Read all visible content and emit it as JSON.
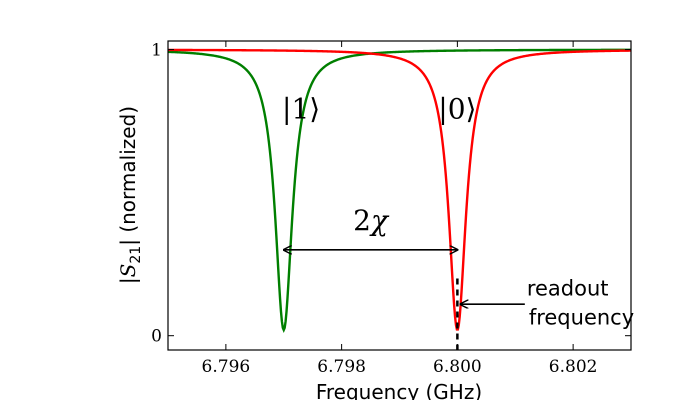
{
  "chart_data": {
    "type": "line",
    "title": "",
    "xlabel": "Frequency (GHz)",
    "ylabel": {
      "pre": "|",
      "sym": "S",
      "sub": "21",
      "post": "| (normalized)"
    },
    "xlim": [
      6.795,
      6.803
    ],
    "ylim": [
      -0.05,
      1.03
    ],
    "x_ticks": [
      6.796,
      6.798,
      6.8,
      6.802
    ],
    "x_tick_labels": [
      "6.796",
      "6.798",
      "6.800",
      "6.802"
    ],
    "y_ticks": [
      0,
      1
    ],
    "y_tick_labels": [
      "0",
      "1"
    ],
    "grid": false,
    "series": [
      {
        "state": "|1⟩",
        "color": "#007f00",
        "center": 6.797,
        "half_width": 0.00018,
        "min": 0.02
      },
      {
        "state": "|0⟩",
        "color": "#ff0000",
        "center": 6.8,
        "half_width": 0.00018,
        "min": 0.02
      }
    ],
    "annotations": {
      "label_1": {
        "text": "|1⟩",
        "x": 6.7973,
        "y": 0.76
      },
      "label_0": {
        "text": "|0⟩",
        "x": 6.8,
        "y": 0.76
      },
      "chi": {
        "base": "2",
        "sym": "χ",
        "x": 6.7985,
        "y": 0.37,
        "arrow_from": 6.797,
        "arrow_to": 6.8,
        "arrow_y": 0.3
      },
      "readout": {
        "lines": [
          "readout",
          "frequency"
        ],
        "x": 6.8012,
        "y": 0.14,
        "arrow_tip_x": 6.8,
        "arrow_tip_y": 0.11,
        "marker_x": 6.8,
        "marker_y_top": 0.2,
        "marker_y_bottom": -0.05
      }
    }
  }
}
